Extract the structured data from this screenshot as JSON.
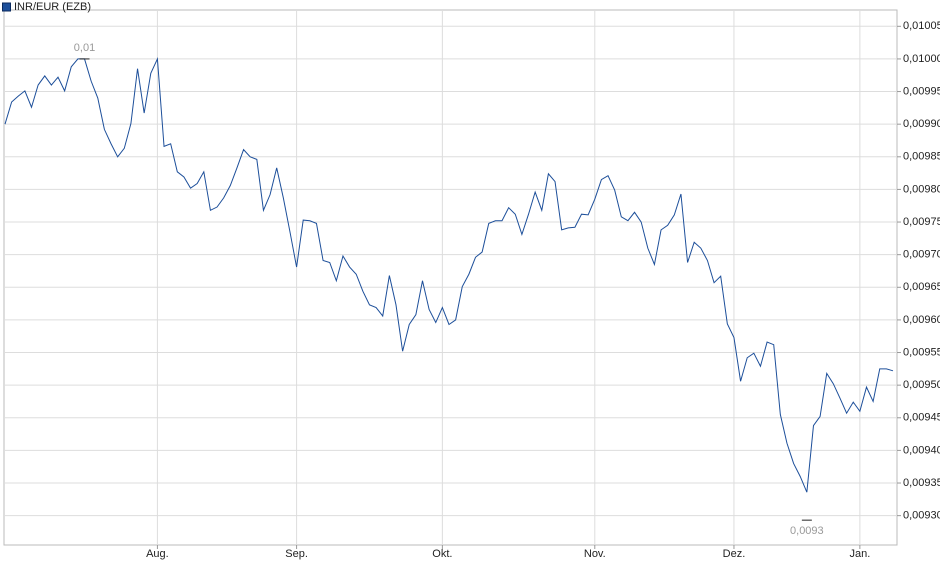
{
  "chart_data": {
    "type": "line",
    "series": [
      {
        "name": "INR/EUR (EZB)",
        "color": "#1d4f9a",
        "values": [
          0.0099,
          0.009934,
          0.009943,
          0.009951,
          0.009926,
          0.00996,
          0.009974,
          0.00996,
          0.009972,
          0.009951,
          0.009988,
          0.01,
          0.01,
          0.009966,
          0.00994,
          0.009892,
          0.00987,
          0.00985,
          0.009863,
          0.009901,
          0.009985,
          0.009917,
          0.009978,
          0.01,
          0.009866,
          0.00987,
          0.009827,
          0.009819,
          0.009802,
          0.009809,
          0.009827,
          0.009768,
          0.009773,
          0.009787,
          0.009806,
          0.009833,
          0.009861,
          0.00985,
          0.009846,
          0.009768,
          0.009792,
          0.009833,
          0.009787,
          0.009735,
          0.009681,
          0.009753,
          0.009752,
          0.009748,
          0.009691,
          0.009688,
          0.00966,
          0.009698,
          0.009681,
          0.00967,
          0.009644,
          0.009623,
          0.009619,
          0.009606,
          0.009668,
          0.009623,
          0.009552,
          0.009593,
          0.009608,
          0.00966,
          0.009616,
          0.009596,
          0.009619,
          0.009593,
          0.0096,
          0.009651,
          0.00967,
          0.009696,
          0.009704,
          0.009748,
          0.009752,
          0.009752,
          0.009772,
          0.009762,
          0.009731,
          0.009762,
          0.009796,
          0.009768,
          0.009824,
          0.009812,
          0.009738,
          0.009741,
          0.009742,
          0.009762,
          0.009761,
          0.009785,
          0.009815,
          0.009821,
          0.009799,
          0.009758,
          0.009752,
          0.009765,
          0.00975,
          0.00971,
          0.009685,
          0.009738,
          0.009745,
          0.009761,
          0.009793,
          0.009688,
          0.009719,
          0.00971,
          0.009691,
          0.009657,
          0.009667,
          0.009594,
          0.009573,
          0.009506,
          0.009542,
          0.009549,
          0.009529,
          0.009566,
          0.009562,
          0.009455,
          0.009411,
          0.00938,
          0.00936,
          0.009336,
          0.009438,
          0.009452,
          0.009518,
          0.009502,
          0.00948,
          0.009457,
          0.009474,
          0.00946,
          0.009497,
          0.009475,
          0.009525,
          0.009525,
          0.009522
        ],
        "value_labels": [
          null,
          null,
          null,
          null,
          null,
          null,
          null,
          null,
          null,
          null,
          null,
          null,
          "0,01",
          null,
          null,
          null,
          null,
          null,
          null,
          null,
          null,
          null,
          null,
          null,
          null,
          null,
          null,
          null,
          null,
          null,
          null,
          null,
          null,
          null,
          null,
          null,
          null,
          null,
          null,
          null,
          null,
          null,
          null,
          null,
          null,
          null,
          null,
          null,
          null,
          null,
          null,
          null,
          null,
          null,
          null,
          null,
          null,
          null,
          null,
          null,
          null,
          null,
          null,
          null,
          null,
          null,
          null,
          null,
          null,
          null,
          null,
          null,
          null,
          null,
          null,
          null,
          null,
          null,
          null,
          null,
          null,
          null,
          null,
          null,
          null,
          null,
          null,
          null,
          null,
          null,
          null,
          null,
          null,
          null,
          null,
          null,
          null,
          null,
          null,
          null,
          null,
          null,
          null,
          null,
          null,
          null,
          null,
          null,
          null,
          null,
          null,
          null,
          null,
          null,
          null,
          null,
          null,
          null,
          null,
          null,
          null,
          "0,0093",
          null,
          null,
          null,
          null,
          null,
          null,
          null,
          null,
          null,
          null,
          null,
          null,
          null
        ]
      }
    ],
    "categories": [
      null,
      null,
      null,
      null,
      null,
      null,
      null,
      null,
      null,
      null,
      null,
      null,
      null,
      null,
      null,
      null,
      null,
      null,
      null,
      null,
      null,
      null,
      null,
      "Aug.",
      null,
      null,
      null,
      null,
      null,
      null,
      null,
      null,
      null,
      null,
      null,
      null,
      null,
      null,
      null,
      null,
      null,
      null,
      null,
      null,
      "Sep.",
      null,
      null,
      null,
      null,
      null,
      null,
      null,
      null,
      null,
      null,
      null,
      null,
      null,
      null,
      null,
      null,
      null,
      null,
      null,
      null,
      null,
      "Okt.",
      null,
      null,
      null,
      null,
      null,
      null,
      null,
      null,
      null,
      null,
      null,
      null,
      null,
      null,
      null,
      null,
      null,
      null,
      null,
      null,
      null,
      null,
      "Nov.",
      null,
      null,
      null,
      null,
      null,
      null,
      null,
      null,
      null,
      null,
      null,
      null,
      null,
      null,
      null,
      null,
      null,
      null,
      null,
      null,
      "Dez.",
      null,
      null,
      null,
      null,
      null,
      null,
      null,
      null,
      null,
      null,
      null,
      null,
      null,
      null,
      null,
      null,
      null,
      null,
      "Jan.",
      null,
      null,
      null,
      null,
      null
    ],
    "ylim": [
      0.009255,
      0.010075
    ],
    "yticks": [
      {
        "value": 0.01005,
        "label": "0,01005"
      },
      {
        "value": 0.01,
        "label": "0,01000"
      },
      {
        "value": 0.00995,
        "label": "0,00995"
      },
      {
        "value": 0.0099,
        "label": "0,00990"
      },
      {
        "value": 0.00985,
        "label": "0,00985"
      },
      {
        "value": 0.0098,
        "label": "0,00980"
      },
      {
        "value": 0.00975,
        "label": "0,00975"
      },
      {
        "value": 0.0097,
        "label": "0,00970"
      },
      {
        "value": 0.00965,
        "label": "0,00965"
      },
      {
        "value": 0.0096,
        "label": "0,00960"
      },
      {
        "value": 0.00955,
        "label": "0,00955"
      },
      {
        "value": 0.0095,
        "label": "0,00950"
      },
      {
        "value": 0.00945,
        "label": "0,00945"
      },
      {
        "value": 0.0094,
        "label": "0,00940"
      },
      {
        "value": 0.00935,
        "label": "0,00935"
      },
      {
        "value": 0.0093,
        "label": "0,00930"
      }
    ],
    "grid": true,
    "legend": "top-left"
  }
}
